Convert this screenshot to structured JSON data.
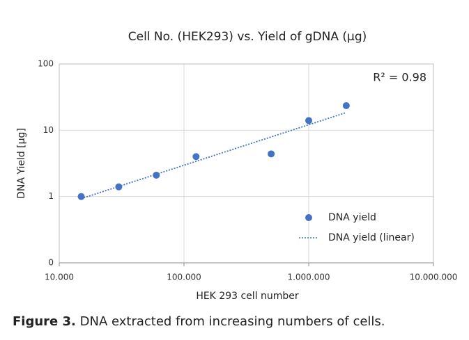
{
  "chart_data": {
    "type": "scatter",
    "title": "Cell No. (HEK293) vs. Yield of gDNA (µg)",
    "x_label": "HEK 293 cell number",
    "y_label": "DNA Yield [µg]",
    "annotation": "R² = 0.98",
    "caption_bold": "Figure 3.",
    "caption": "DNA extracted from increasing numbers of cells.",
    "xscale": "log",
    "yscale": "log",
    "grid": true,
    "legend": "lower right",
    "xlim": [
      10000,
      10000000
    ],
    "xticks": [
      {
        "value": 10000,
        "label": "10.000"
      },
      {
        "value": 100000,
        "label": "100.000"
      },
      {
        "value": 1000000,
        "label": "1.000.000"
      },
      {
        "value": 10000000,
        "label": "10.000.000"
      }
    ],
    "ylim": [
      0.1,
      100
    ],
    "yticks": [
      {
        "value": 0.1,
        "label": "0"
      },
      1,
      10,
      100
    ],
    "series": [
      {
        "name": "DNA yield",
        "color": "#4472c4",
        "style": "markers",
        "x": [
          15000,
          30000,
          60000,
          125000,
          500000,
          1000000,
          2000000
        ],
        "values": [
          1.0,
          1.4,
          2.1,
          4.0,
          4.4,
          14,
          23.5
        ]
      },
      {
        "name": "DNA yield (linear)",
        "color": "#4472c4",
        "style": "dotted",
        "x": [
          15000,
          2000000
        ],
        "values": [
          0.93,
          18.5
        ]
      }
    ]
  }
}
